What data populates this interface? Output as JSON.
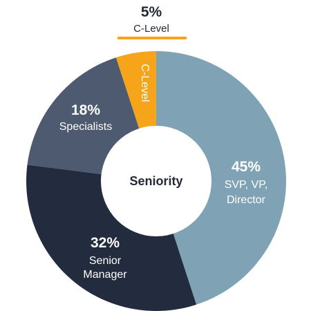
{
  "chart_data": {
    "type": "donut",
    "center_label": "Seniority",
    "slices": [
      {
        "percent_label": "45%",
        "value": 45,
        "label_lines": [
          "SVP, VP,",
          "Director"
        ],
        "color": "#7fa3b5",
        "label_color": "#ffffff"
      },
      {
        "percent_label": "32%",
        "value": 32,
        "label_lines": [
          "Senior",
          "Manager"
        ],
        "color": "#232c3f",
        "label_color": "#ffffff"
      },
      {
        "percent_label": "18%",
        "value": 18,
        "label_lines": [
          "Specialists"
        ],
        "color": "#4d5a70",
        "label_color": "#ffffff"
      },
      {
        "percent_label": "5%",
        "value": 5,
        "label_lines": [
          "C-Level"
        ],
        "color": "#f6a41a",
        "label_color": "#ffffff"
      }
    ],
    "callout": {
      "percent_label": "5%",
      "label": "C-Level",
      "underline_color": "#f6a41a"
    }
  }
}
